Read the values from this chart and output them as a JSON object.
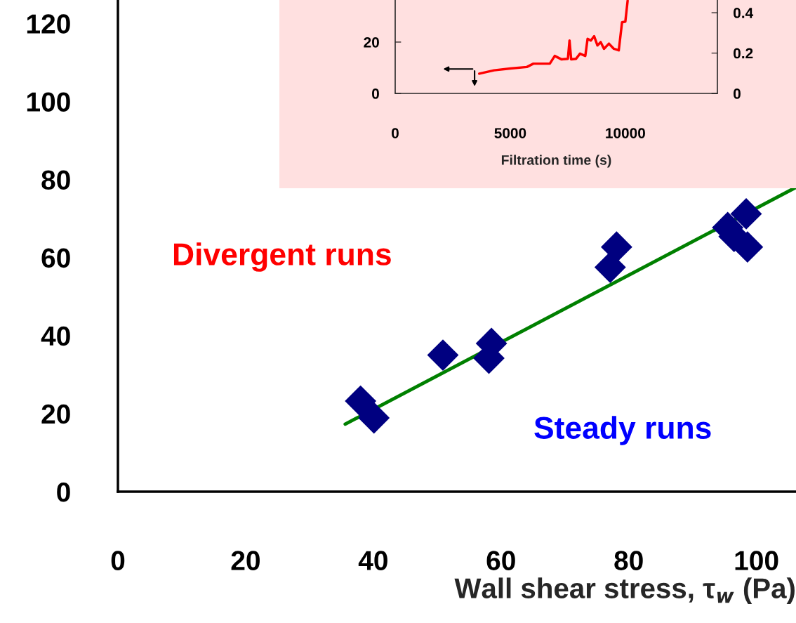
{
  "chart_data": [
    {
      "type": "scatter",
      "xlabel": "Wall shear stress, τ$_{w}$ (Pa)",
      "xlim": [
        0,
        106.2
      ],
      "ylim": [
        0,
        126
      ],
      "xticks": [
        0,
        20,
        40,
        60,
        80,
        100
      ],
      "yticks": [
        0,
        20,
        40,
        60,
        80,
        100,
        120
      ],
      "grid": false,
      "legend": false,
      "series": [
        {
          "marker": "diamond",
          "color": "#000080",
          "x": [
            38.0,
            40.1,
            50.9,
            58.5,
            58.1,
            78.1,
            77.1,
            95.5,
            96.5,
            98.6,
            98.4
          ],
          "values": [
            23.2,
            18.9,
            35.0,
            38.0,
            34.2,
            62.7,
            57.5,
            67.7,
            65.4,
            62.7,
            71.2
          ]
        },
        {
          "type": "line",
          "color": "#008000",
          "x": [
            35.6,
            106.2
          ],
          "values": [
            17.3,
            78.0
          ]
        }
      ],
      "annotations": [
        "Divergent runs",
        "Steady runs"
      ]
    },
    {
      "type": "line",
      "xlabel": "Filtration time (s)",
      "xlim": [
        0,
        14000
      ],
      "xticks": [
        0,
        5000,
        10000
      ],
      "ylim": [
        0,
        36.4
      ],
      "yticks": [
        0,
        20
      ],
      "y2lim": [
        0,
        0.463
      ],
      "y2ticks": [
        0,
        0.2,
        0.4
      ],
      "grid": false,
      "legend": false,
      "series": [
        {
          "color": "#ff0000",
          "x": [
            3652,
            4294,
            5007,
            5720,
            6006,
            6719,
            6933,
            7218,
            7504,
            7575,
            7646,
            7860,
            8031,
            8260,
            8360,
            8502,
            8645,
            8787,
            8930,
            9073,
            9287,
            9501,
            9715,
            9857,
            10000,
            10100
          ],
          "values": [
            7.7,
            9.0,
            9.7,
            10.3,
            11.6,
            11.6,
            14.6,
            13.3,
            13.5,
            20.6,
            13.3,
            13.5,
            15.5,
            14.6,
            21.3,
            20.6,
            22.3,
            18.7,
            20.0,
            17.4,
            19.4,
            17.4,
            16.8,
            27.7,
            28.0,
            36.1
          ]
        }
      ]
    }
  ]
}
